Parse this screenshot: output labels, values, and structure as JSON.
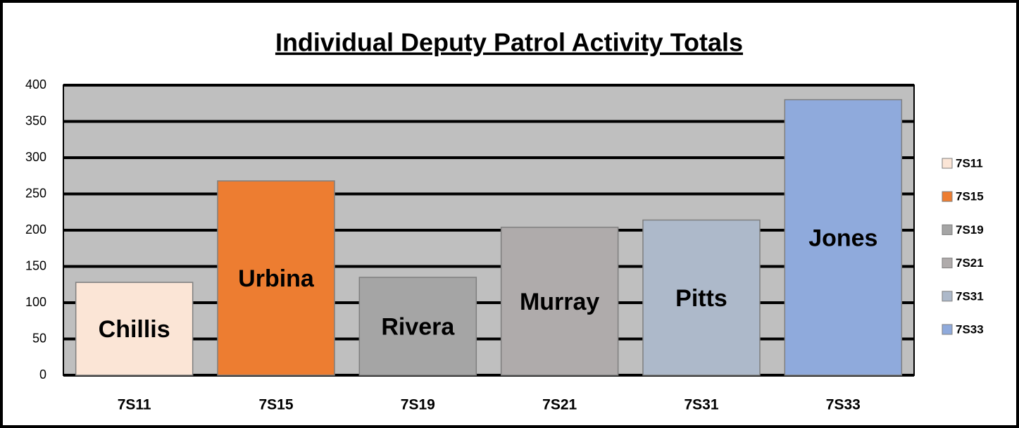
{
  "chart_data": {
    "type": "bar",
    "title": "Individual Deputy Patrol Activity Totals",
    "categories": [
      "7S11",
      "7S15",
      "7S19",
      "7S21",
      "7S31",
      "7S33"
    ],
    "values": [
      128,
      268,
      135,
      204,
      214,
      380
    ],
    "bar_labels": [
      "Chillis",
      "Urbina",
      "Rivera",
      "Murray",
      "Pitts",
      "Jones"
    ],
    "colors": [
      "#fbe5d6",
      "#ed7d31",
      "#a5a5a5",
      "#afabab",
      "#adb9ca",
      "#8faadc"
    ],
    "ylim": [
      0,
      400
    ],
    "yticks": [
      0,
      50,
      100,
      150,
      200,
      250,
      300,
      350,
      400
    ],
    "grid": true,
    "legend": "right"
  }
}
